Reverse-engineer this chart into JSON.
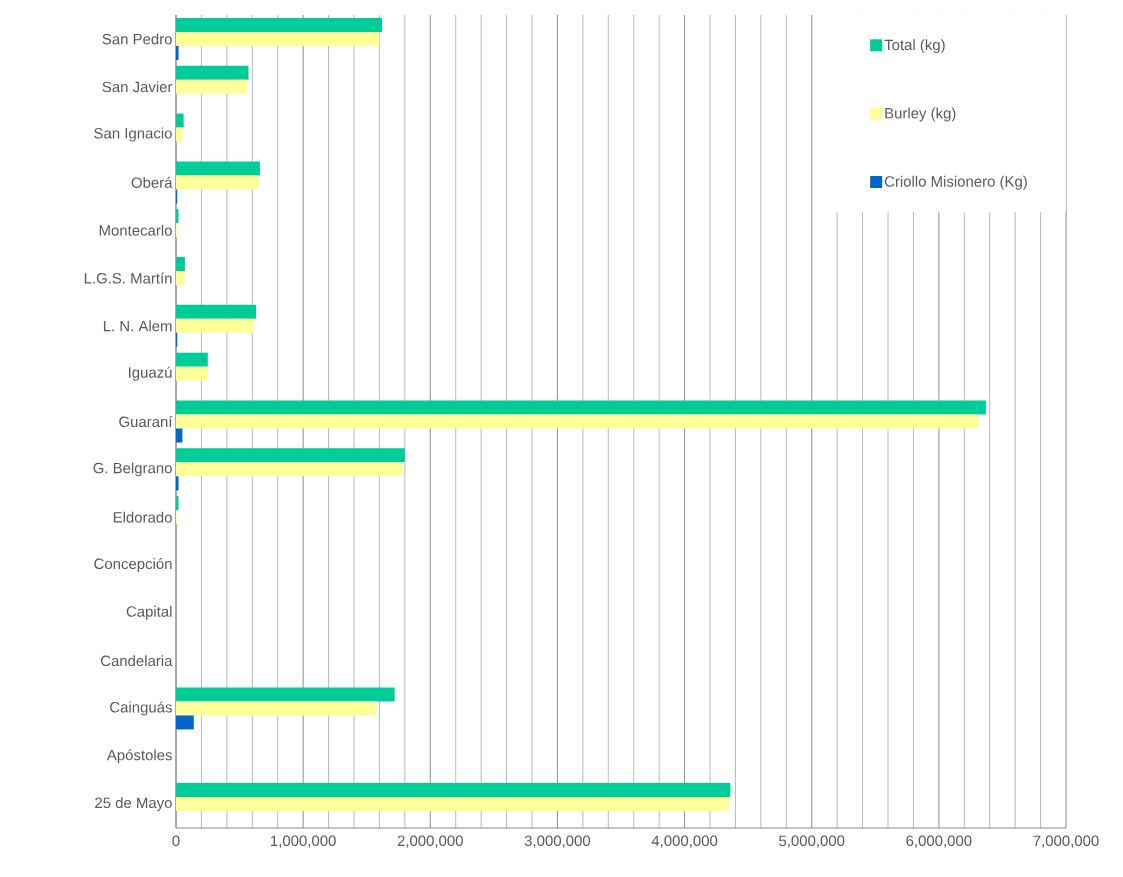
{
  "chart_data": {
    "type": "bar",
    "orientation": "horizontal",
    "categories": [
      "San Pedro",
      "San Javier",
      "San Ignacio",
      "Oberá",
      "Montecarlo",
      "L.G.S. Martín",
      "L. N. Alem",
      "Iguazú",
      "Guaraní",
      "G. Belgrano",
      "Eldorado",
      "Concepción",
      "Capital",
      "Candelaria",
      "Cainguás",
      "Apóstoles",
      "25 de Mayo"
    ],
    "series": [
      {
        "name": "Total (kg)",
        "color": "#00cc99",
        "values": [
          1620000,
          570000,
          60000,
          660000,
          20000,
          70000,
          630000,
          250000,
          6370000,
          1800000,
          20000,
          0,
          0,
          0,
          1720000,
          0,
          4360000
        ]
      },
      {
        "name": "Burley (kg)",
        "color": "#ffff99",
        "values": [
          1600000,
          560000,
          50000,
          650000,
          10000,
          70000,
          610000,
          250000,
          6310000,
          1780000,
          10000,
          0,
          0,
          0,
          1580000,
          0,
          4350000
        ]
      },
      {
        "name": "Criollo Misionero (Kg)",
        "color": "#0066cc",
        "values": [
          20000,
          0,
          0,
          10000,
          0,
          0,
          10000,
          0,
          50000,
          20000,
          0,
          0,
          0,
          0,
          140000,
          0,
          0
        ]
      }
    ],
    "xlim": [
      0,
      7000000
    ],
    "xticks": [
      {
        "value": 0,
        "label": "0"
      },
      {
        "value": 1000000,
        "label": "1,000,000"
      },
      {
        "value": 2000000,
        "label": "2,000,000"
      },
      {
        "value": 3000000,
        "label": "3,000,000"
      },
      {
        "value": 4000000,
        "label": "4,000,000"
      },
      {
        "value": 5000000,
        "label": "5,000,000"
      },
      {
        "value": 6000000,
        "label": "6,000,000"
      },
      {
        "value": 7000000,
        "label": "7,000,000"
      }
    ],
    "grid": "x",
    "legend": "top right"
  }
}
